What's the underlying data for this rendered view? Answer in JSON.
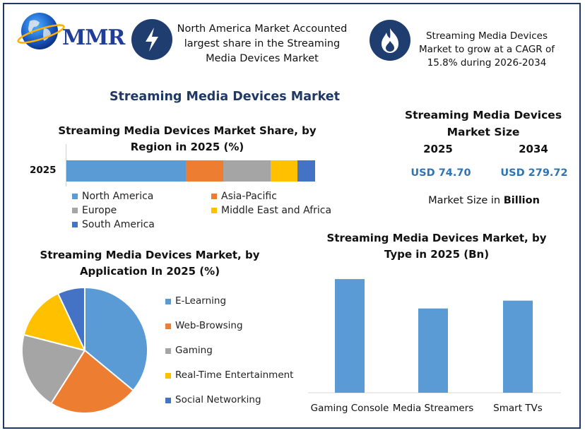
{
  "logo": {
    "text": "MMR"
  },
  "header": {
    "info1": "North America Market Accounted largest share in the Streaming Media Devices Market",
    "info1_icon": "lightning-icon",
    "info2": "Streaming Media Devices Market to grow at a CAGR of 15.8% during 2026-2034",
    "info2_icon": "flame-icon",
    "badge_color": "#1f3d6e"
  },
  "main_title": "Streaming Media Devices Market",
  "market_size": {
    "title": "Streaming Media Devices Market Size",
    "year_a": "2025",
    "year_b": "2034",
    "value_a": "USD 74.70",
    "value_b": "USD 279.72",
    "note_prefix": "Market Size in ",
    "note_bold": "Billion"
  },
  "chart_data": [
    {
      "type": "bar",
      "orientation": "horizontal-stacked",
      "title": "Streaming Media Devices Market Share, by Region in 2025 (%)",
      "categories": [
        "2025"
      ],
      "series": [
        {
          "name": "North America",
          "values": [
            48
          ],
          "color": "#5b9bd5"
        },
        {
          "name": "Asia-Pacific",
          "values": [
            15
          ],
          "color": "#ed7d31"
        },
        {
          "name": "Europe",
          "values": [
            19
          ],
          "color": "#a5a5a5"
        },
        {
          "name": "Middle East and Africa",
          "values": [
            11
          ],
          "color": "#ffc000"
        },
        {
          "name": "South America",
          "values": [
            7
          ],
          "color": "#4472c4"
        }
      ],
      "legend": "bottom"
    },
    {
      "type": "pie",
      "title": "Streaming Media Devices Market, by Application In 2025 (%)",
      "labels": [
        "E-Learning",
        "Web-Browsing",
        "Gaming",
        "Real-Time Entertainment",
        "Social Networking"
      ],
      "values": [
        36,
        23,
        20,
        14,
        7
      ],
      "colors": [
        "#5b9bd5",
        "#ed7d31",
        "#a5a5a5",
        "#ffc000",
        "#4472c4"
      ],
      "legend": "right"
    },
    {
      "type": "bar",
      "title": "Streaming Media Devices Market, by Type in 2025 (Bn)",
      "categories": [
        "Gaming Console",
        "Media Streamers",
        "Smart TVs"
      ],
      "values": [
        29,
        21.5,
        23.5
      ],
      "ylim": [
        0,
        31
      ],
      "color": "#5b9bd5",
      "grid": false
    }
  ]
}
